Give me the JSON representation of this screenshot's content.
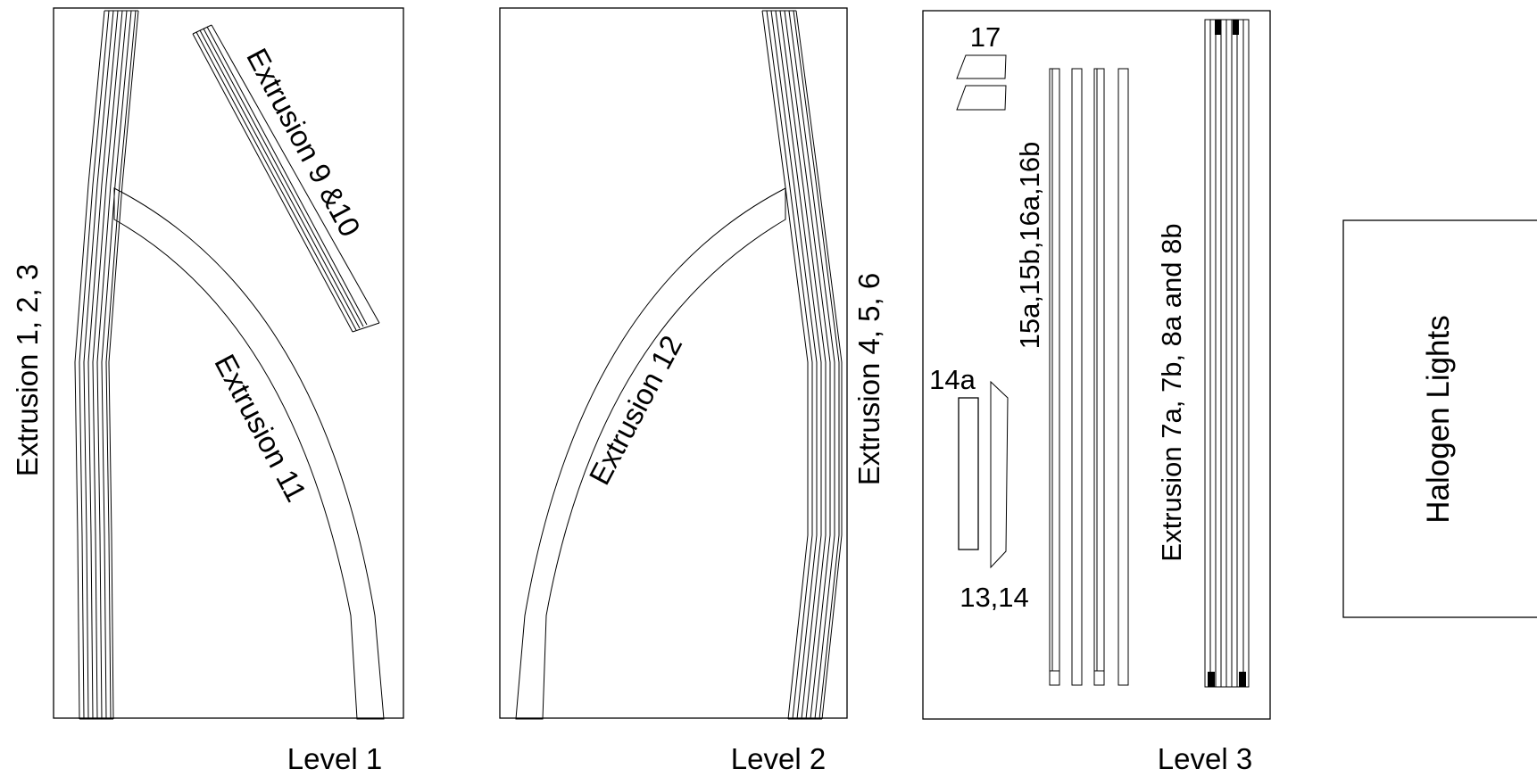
{
  "panels": {
    "level1": {
      "title": "Level 1",
      "label_stack": "Extrusion 1, 2, 3",
      "label_diagonal": "Extrusion 9 &10",
      "label_curve": "Extrusion 11"
    },
    "level2": {
      "title": "Level 2",
      "label_stack": "Extrusion 4, 5, 6",
      "label_curve": "Extrusion 12"
    },
    "level3": {
      "title": "Level 3",
      "label_17": "17",
      "label_14a": "14a",
      "label_13_14": "13,14",
      "label_15_16": "15a,15b,16a,16b",
      "label_7_8": "Extrusion 7a, 7b, 8a and 8b"
    },
    "halogen": {
      "label": "Halogen Lights"
    }
  },
  "colors": {
    "line": "#000000",
    "background": "#ffffff"
  }
}
